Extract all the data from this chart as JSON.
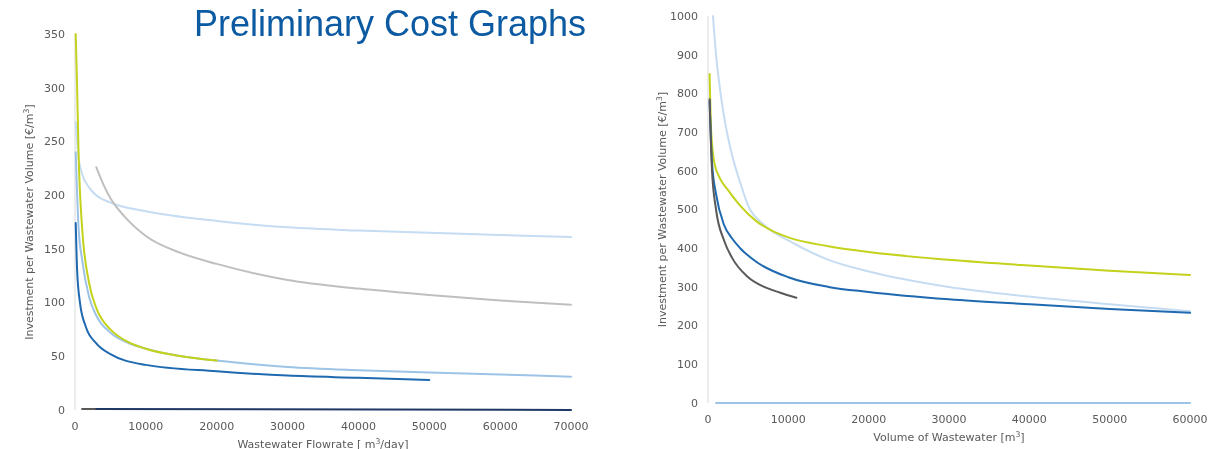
{
  "chart_data": [
    {
      "type": "line",
      "title": "Preliminary Cost Graphs",
      "xlabel": "Wastewater Flowrate [ m$^{3}$/day]",
      "ylabel": "Investment per Wastewater Volume [€/m$^{3}$]",
      "xlim": [
        0,
        70000
      ],
      "xticks": [
        0,
        10000,
        20000,
        30000,
        40000,
        50000,
        60000,
        70000
      ],
      "ylim": [
        0,
        350
      ],
      "yticks": [
        0,
        50,
        100,
        150,
        200,
        250,
        300,
        350
      ],
      "grid": false,
      "marker": "none",
      "line_style": "solid",
      "series": [
        {
          "color": "#c5dcf2",
          "x": [
            100,
            500,
            1000,
            2000,
            3000,
            5000,
            10000,
            20000,
            30000,
            40000,
            50000,
            60000,
            70000
          ],
          "values": [
            268,
            235,
            220,
            207,
            200,
            193,
            185,
            176,
            170,
            167,
            165,
            163,
            161
          ]
        },
        {
          "color": "#bfbfbf",
          "x": [
            3000,
            4000,
            5000,
            7000,
            10000,
            15000,
            20000,
            30000,
            40000,
            50000,
            60000,
            70000
          ],
          "values": [
            226,
            210,
            197,
            180,
            162,
            146,
            136,
            121,
            113,
            107,
            102,
            98
          ]
        },
        {
          "color": "#9dc3e6",
          "x": [
            100,
            500,
            1000,
            2000,
            3000,
            5000,
            7000,
            10000,
            15000,
            20000,
            30000,
            40000,
            50000,
            60000,
            70000
          ],
          "values": [
            240,
            170,
            140,
            105,
            88,
            72,
            64,
            57,
            50,
            46,
            40,
            37,
            35,
            33,
            31
          ]
        },
        {
          "color": "#c3d21a",
          "x": [
            100,
            300,
            500,
            1000,
            2000,
            3000,
            5000,
            7000,
            10000,
            15000,
            20000
          ],
          "values": [
            350,
            300,
            240,
            170,
            118,
            95,
            75,
            65,
            57,
            50,
            46
          ]
        },
        {
          "color": "#1f69b0",
          "x": [
            100,
            300,
            700,
            1500,
            3000,
            5000,
            10000,
            20000,
            30000,
            40000,
            50000
          ],
          "values": [
            174,
            130,
            100,
            78,
            62,
            52,
            42,
            36,
            32,
            30,
            28
          ]
        },
        {
          "color": "#595959",
          "x": [
            1000,
            3000
          ],
          "values": [
            1,
            1
          ]
        },
        {
          "color": "#1f3864",
          "x": [
            3000,
            70000
          ],
          "values": [
            1,
            0
          ]
        }
      ]
    },
    {
      "type": "line",
      "xlabel": "Volume of Wastewater [m$^{3}$]",
      "ylabel": "Investment per  Wastewater Volume [€/m$^{3}$]",
      "xlim": [
        0,
        60000
      ],
      "xticks": [
        0,
        10000,
        20000,
        30000,
        40000,
        50000,
        60000
      ],
      "ylim": [
        0,
        1000
      ],
      "yticks": [
        0,
        100,
        200,
        300,
        400,
        500,
        600,
        700,
        800,
        900,
        1000
      ],
      "grid": false,
      "marker": "none",
      "line_style": "solid",
      "series": [
        {
          "color": "#c5dcf2",
          "x": [
            620,
            1000,
            1500,
            2000,
            3000,
            4000,
            5000,
            7000,
            10000,
            15000,
            20000,
            30000,
            40000,
            50000,
            60000
          ],
          "values": [
            1000,
            900,
            810,
            740,
            640,
            570,
            510,
            460,
            420,
            370,
            340,
            300,
            275,
            255,
            237
          ]
        },
        {
          "color": "#c3d21a",
          "x": [
            200,
            400,
            800,
            1500,
            2500,
            4000,
            6000,
            8000,
            10000,
            15000,
            20000,
            30000,
            40000,
            50000,
            60000
          ],
          "values": [
            850,
            700,
            620,
            580,
            550,
            510,
            470,
            445,
            428,
            405,
            390,
            370,
            355,
            342,
            331
          ]
        },
        {
          "color": "#1f69b0",
          "x": [
            200,
            500,
            1000,
            2000,
            3000,
            4000,
            6000,
            10000,
            15000,
            20000,
            30000,
            40000,
            50000,
            60000
          ],
          "values": [
            780,
            620,
            540,
            460,
            425,
            400,
            365,
            325,
            300,
            287,
            268,
            255,
            243,
            233
          ]
        },
        {
          "color": "#595959",
          "x": [
            200,
            500,
            1000,
            2000,
            3000,
            5000,
            7000,
            9000,
            11000
          ],
          "values": [
            785,
            600,
            500,
            420,
            375,
            325,
            300,
            285,
            272
          ]
        },
        {
          "color": "#9dc3e6",
          "x": [
            1000,
            60000
          ],
          "values": [
            0,
            0
          ]
        }
      ]
    }
  ]
}
